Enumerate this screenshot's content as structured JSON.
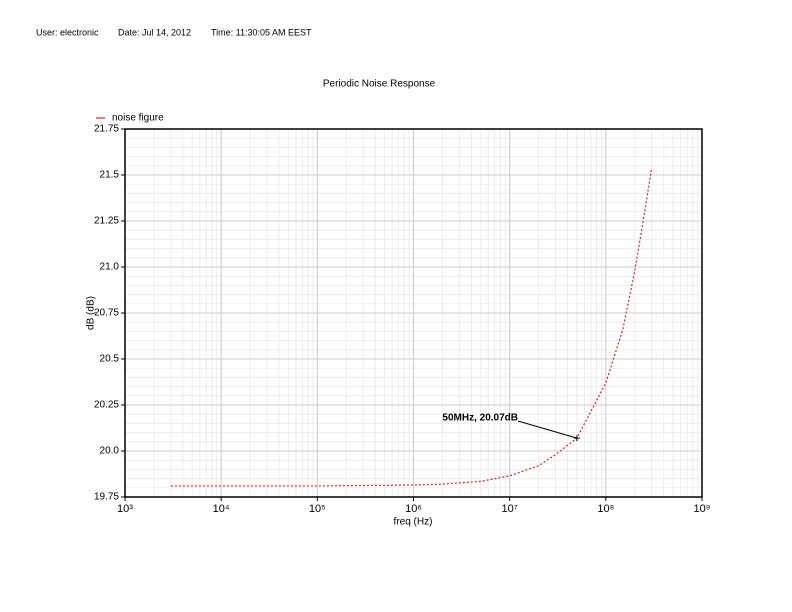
{
  "header": {
    "user": "User: electronic",
    "date": "Date: Jul 14, 2012",
    "time": "Time: 11:30:05 AM EEST"
  },
  "chart_data": {
    "type": "line",
    "title": "Periodic Noise Response",
    "xlabel": "freq (Hz)",
    "ylabel": "dB (dB)",
    "xscale": "log",
    "grid": true,
    "legend": "top-left",
    "x": [
      3000,
      10000,
      100000,
      1000000,
      2000000,
      5000000,
      10000000,
      20000000,
      30000000,
      50000000,
      100000000,
      150000000,
      200000000,
      250000000,
      300000000
    ],
    "series": [
      {
        "name": "noise figure",
        "color": "#e02020",
        "values": [
          19.81,
          19.81,
          19.81,
          19.815,
          19.82,
          19.835,
          19.865,
          19.92,
          19.98,
          20.07,
          20.37,
          20.66,
          20.98,
          21.28,
          21.54
        ]
      }
    ],
    "xlim": [
      1000,
      1000000000
    ],
    "xticks": [
      {
        "value": 1000,
        "label": "10³"
      },
      {
        "value": 10000,
        "label": "10⁴"
      },
      {
        "value": 100000,
        "label": "10⁵"
      },
      {
        "value": 1000000,
        "label": "10⁶"
      },
      {
        "value": 10000000,
        "label": "10⁷"
      },
      {
        "value": 100000000,
        "label": "10⁸"
      },
      {
        "value": 1000000000,
        "label": "10⁹"
      }
    ],
    "ylim": [
      19.75,
      21.75
    ],
    "yticks": [
      19.75,
      {
        "value": 20,
        "label": "20.0"
      },
      20.25,
      20.5,
      20.75,
      {
        "value": 21,
        "label": "21.0"
      },
      21.25,
      21.5,
      21.75
    ],
    "annotation": {
      "text": "50MHz, 20.07dB",
      "x": 50000000,
      "y": 20.07
    }
  }
}
